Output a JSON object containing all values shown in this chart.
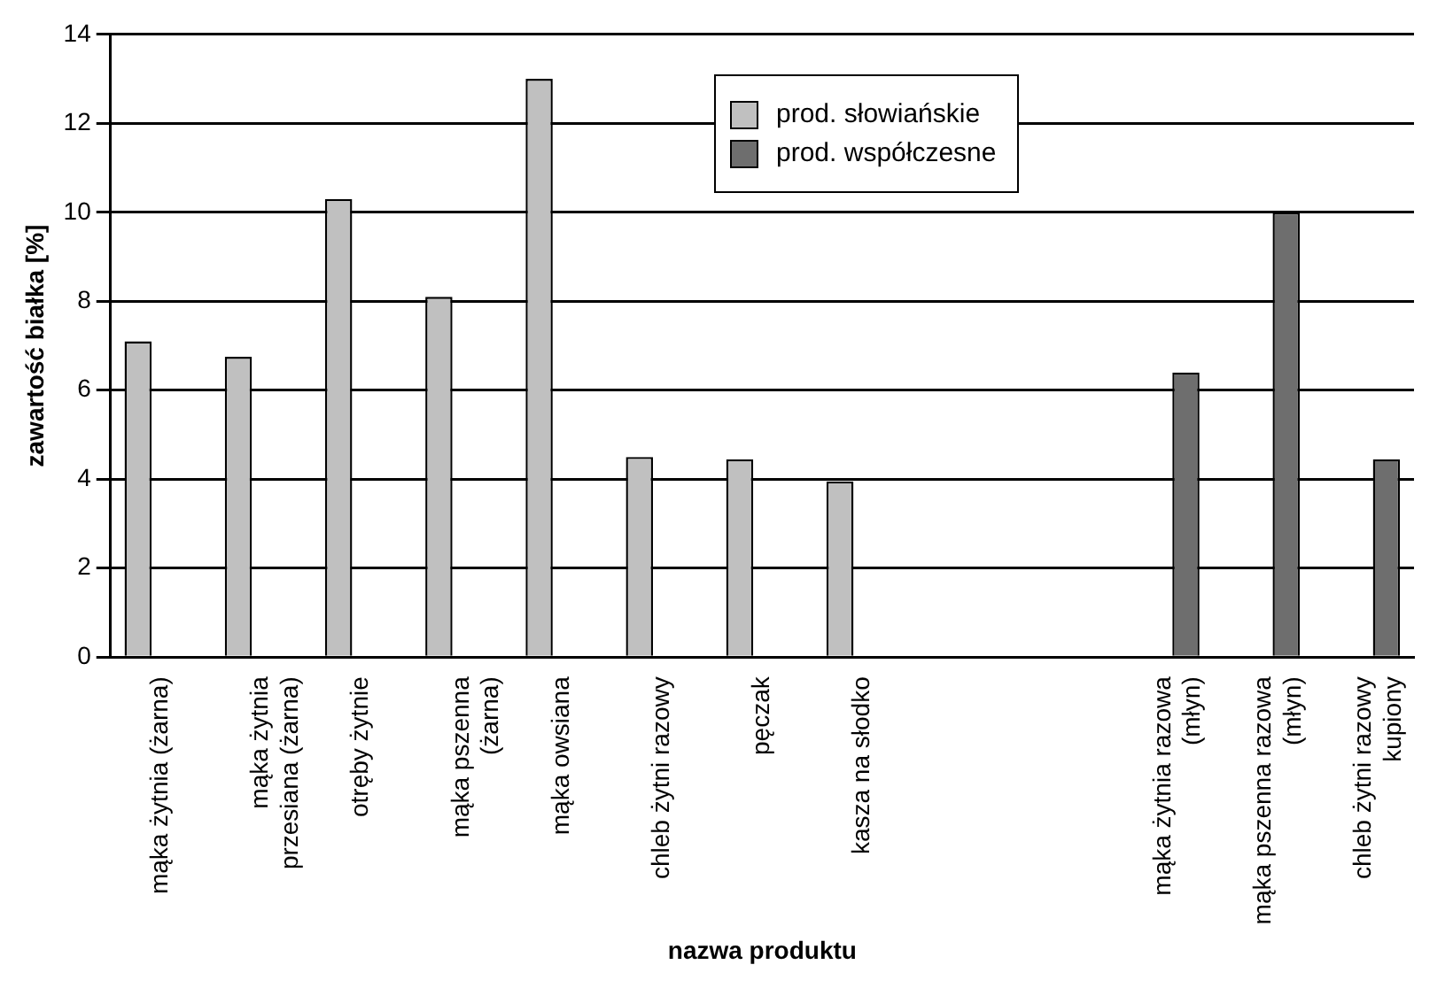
{
  "chart_data": {
    "type": "bar",
    "xlabel": "nazwa produktu",
    "ylabel": "zawartość białka [%]",
    "categories": [
      "mąka żytnia (żarna)",
      "mąka żytnia przesiana (żarna)",
      "otręby żytnie",
      "mąka pszenna (żarna)",
      "mąka owsiana",
      "chleb żytni razowy",
      "pęczak",
      "kasza na słodko",
      null,
      null,
      "mąka żytnia razowa (młyn)",
      "mąka pszenna razowa (młyn)",
      "chleb żytni razowy kupiony"
    ],
    "series": [
      {
        "name": "prod. słowiańskie",
        "color": "#c0c0c0",
        "values": [
          7.1,
          6.75,
          10.3,
          8.1,
          13.0,
          4.5,
          4.45,
          3.95,
          null,
          null,
          null,
          null,
          null
        ]
      },
      {
        "name": "prod. współczesne",
        "color": "#6e6e6e",
        "values": [
          null,
          null,
          null,
          null,
          null,
          null,
          null,
          null,
          null,
          null,
          6.4,
          10.0,
          4.45
        ]
      }
    ],
    "ylim": [
      0,
      14
    ],
    "yticks": [
      0,
      2,
      4,
      6,
      8,
      10,
      12,
      14
    ],
    "grid": "y",
    "legend": "top"
  }
}
